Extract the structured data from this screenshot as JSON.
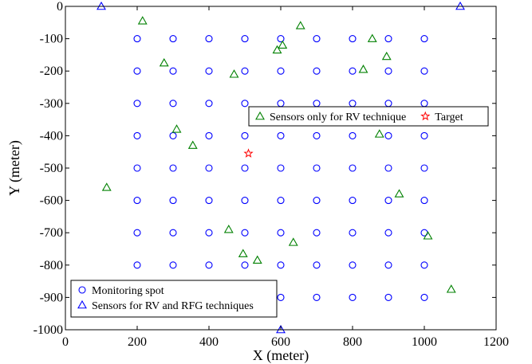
{
  "chart_data": {
    "type": "scatter",
    "title": "",
    "xlabel": "X (meter)",
    "ylabel": "Y (meter)",
    "xlim": [
      0,
      1200
    ],
    "ylim": [
      -1000,
      0
    ],
    "xticks": [
      0,
      200,
      400,
      600,
      800,
      1000,
      1200
    ],
    "yticks": [
      0,
      -100,
      -200,
      -300,
      -400,
      -500,
      -600,
      -700,
      -800,
      -900,
      -1000
    ],
    "grid": false,
    "colors": {
      "monitoring": "#0000ff",
      "rv_rfg": "#0000ff",
      "rv_only": "#008000",
      "target": "#ff0000"
    },
    "legends": [
      {
        "placement": "center-right",
        "entries": [
          {
            "series": "rv_only",
            "label": "Sensors only for RV technique"
          },
          {
            "series": "target",
            "label": "Target"
          }
        ]
      },
      {
        "placement": "bottom-left",
        "entries": [
          {
            "series": "monitoring",
            "label": "Monitoring spot"
          },
          {
            "series": "rv_rfg",
            "label": "Sensors for RV and RFG techniques"
          }
        ]
      }
    ],
    "series": [
      {
        "id": "monitoring",
        "name": "Monitoring spot",
        "marker": "circle",
        "grid_x": [
          200,
          300,
          400,
          500,
          600,
          700,
          800,
          900,
          1000
        ],
        "grid_y": [
          -100,
          -200,
          -300,
          -400,
          -500,
          -600,
          -700,
          -800,
          -900
        ],
        "omit": [
          [
            200,
            -900
          ],
          [
            300,
            -900
          ],
          [
            400,
            -900
          ],
          [
            500,
            -900
          ]
        ]
      },
      {
        "id": "rv_rfg",
        "name": "Sensors for RV and RFG techniques",
        "marker": "triangle",
        "points": [
          [
            100,
            0
          ],
          [
            1100,
            0
          ],
          [
            600,
            -1000
          ]
        ]
      },
      {
        "id": "rv_only",
        "name": "Sensors only for RV technique",
        "marker": "triangle",
        "points": [
          [
            215,
            -45
          ],
          [
            275,
            -175
          ],
          [
            470,
            -210
          ],
          [
            655,
            -60
          ],
          [
            590,
            -135
          ],
          [
            605,
            -120
          ],
          [
            830,
            -195
          ],
          [
            855,
            -100
          ],
          [
            895,
            -155
          ],
          [
            310,
            -380
          ],
          [
            355,
            -430
          ],
          [
            875,
            -395
          ],
          [
            115,
            -560
          ],
          [
            455,
            -690
          ],
          [
            930,
            -580
          ],
          [
            495,
            -765
          ],
          [
            535,
            -785
          ],
          [
            635,
            -730
          ],
          [
            1010,
            -710
          ],
          [
            1075,
            -875
          ]
        ]
      },
      {
        "id": "target",
        "name": "Target",
        "marker": "star",
        "points": [
          [
            510,
            -455
          ]
        ]
      }
    ]
  }
}
